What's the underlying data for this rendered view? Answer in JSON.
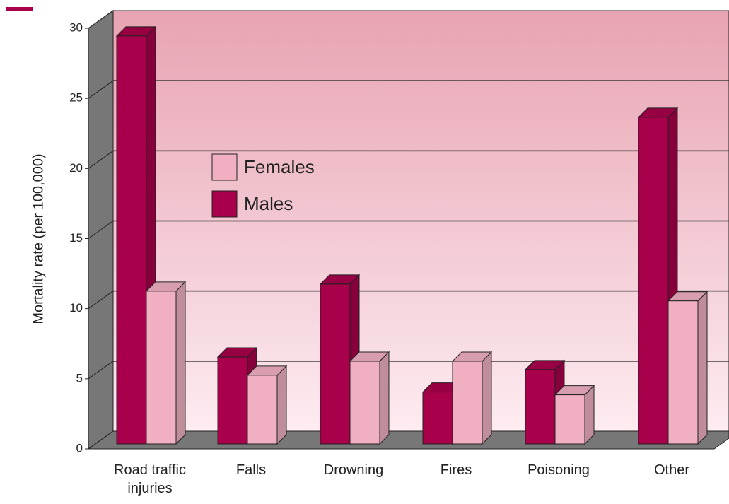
{
  "chart_data": {
    "type": "bar3d",
    "y_label": "Mortality rate (per 100,000)",
    "categories": [
      "Road traffic injuries",
      "Falls",
      "Drowning",
      "Fires",
      "Poisoning",
      "Other"
    ],
    "series": [
      {
        "name": "Males",
        "color": "#a8004a",
        "values": [
          29.1,
          6.2,
          11.4,
          3.7,
          5.3,
          23.3
        ]
      },
      {
        "name": "Females",
        "color": "#f0b0c2",
        "values": [
          10.9,
          4.9,
          5.9,
          5.9,
          3.5,
          10.2
        ]
      }
    ],
    "ylim": [
      0,
      30
    ],
    "yticks": [
      0,
      5,
      10,
      15,
      20,
      25,
      30
    ],
    "grid": true
  }
}
